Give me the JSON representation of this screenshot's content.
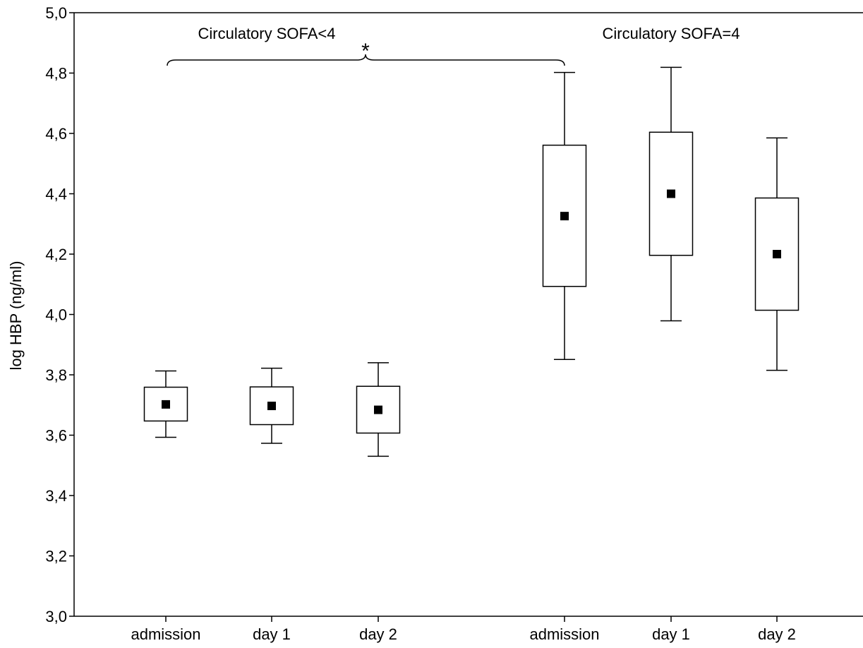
{
  "chart_data": {
    "type": "box",
    "ylabel": "log HBP (ng/ml)",
    "ylim": [
      3.0,
      5.0
    ],
    "yticks": [
      "3,0",
      "3,2",
      "3,4",
      "3,6",
      "3,8",
      "4,0",
      "4,2",
      "4,4",
      "4,6",
      "4,8",
      "5,0"
    ],
    "groups": [
      {
        "label": "Circulatory SOFA<4",
        "boxes": [
          {
            "category": "admission",
            "whisker_low": 3.593,
            "q1": 3.647,
            "median": 3.702,
            "q3": 3.759,
            "whisker_high": 3.813
          },
          {
            "category": "day 1",
            "whisker_low": 3.573,
            "q1": 3.635,
            "median": 3.697,
            "q3": 3.76,
            "whisker_high": 3.822
          },
          {
            "category": "day 2",
            "whisker_low": 3.53,
            "q1": 3.607,
            "median": 3.684,
            "q3": 3.762,
            "whisker_high": 3.84
          }
        ]
      },
      {
        "label": "Circulatory SOFA=4",
        "boxes": [
          {
            "category": "admission",
            "whisker_low": 3.851,
            "q1": 4.093,
            "median": 4.326,
            "q3": 4.561,
            "whisker_high": 4.802
          },
          {
            "category": "day 1",
            "whisker_low": 3.979,
            "q1": 4.196,
            "median": 4.4,
            "q3": 4.604,
            "whisker_high": 4.819
          },
          {
            "category": "day 2",
            "whisker_low": 3.815,
            "q1": 4.014,
            "median": 4.2,
            "q3": 4.386,
            "whisker_high": 4.585
          }
        ]
      }
    ],
    "annotation": "*",
    "grid": false,
    "legend": "none"
  }
}
